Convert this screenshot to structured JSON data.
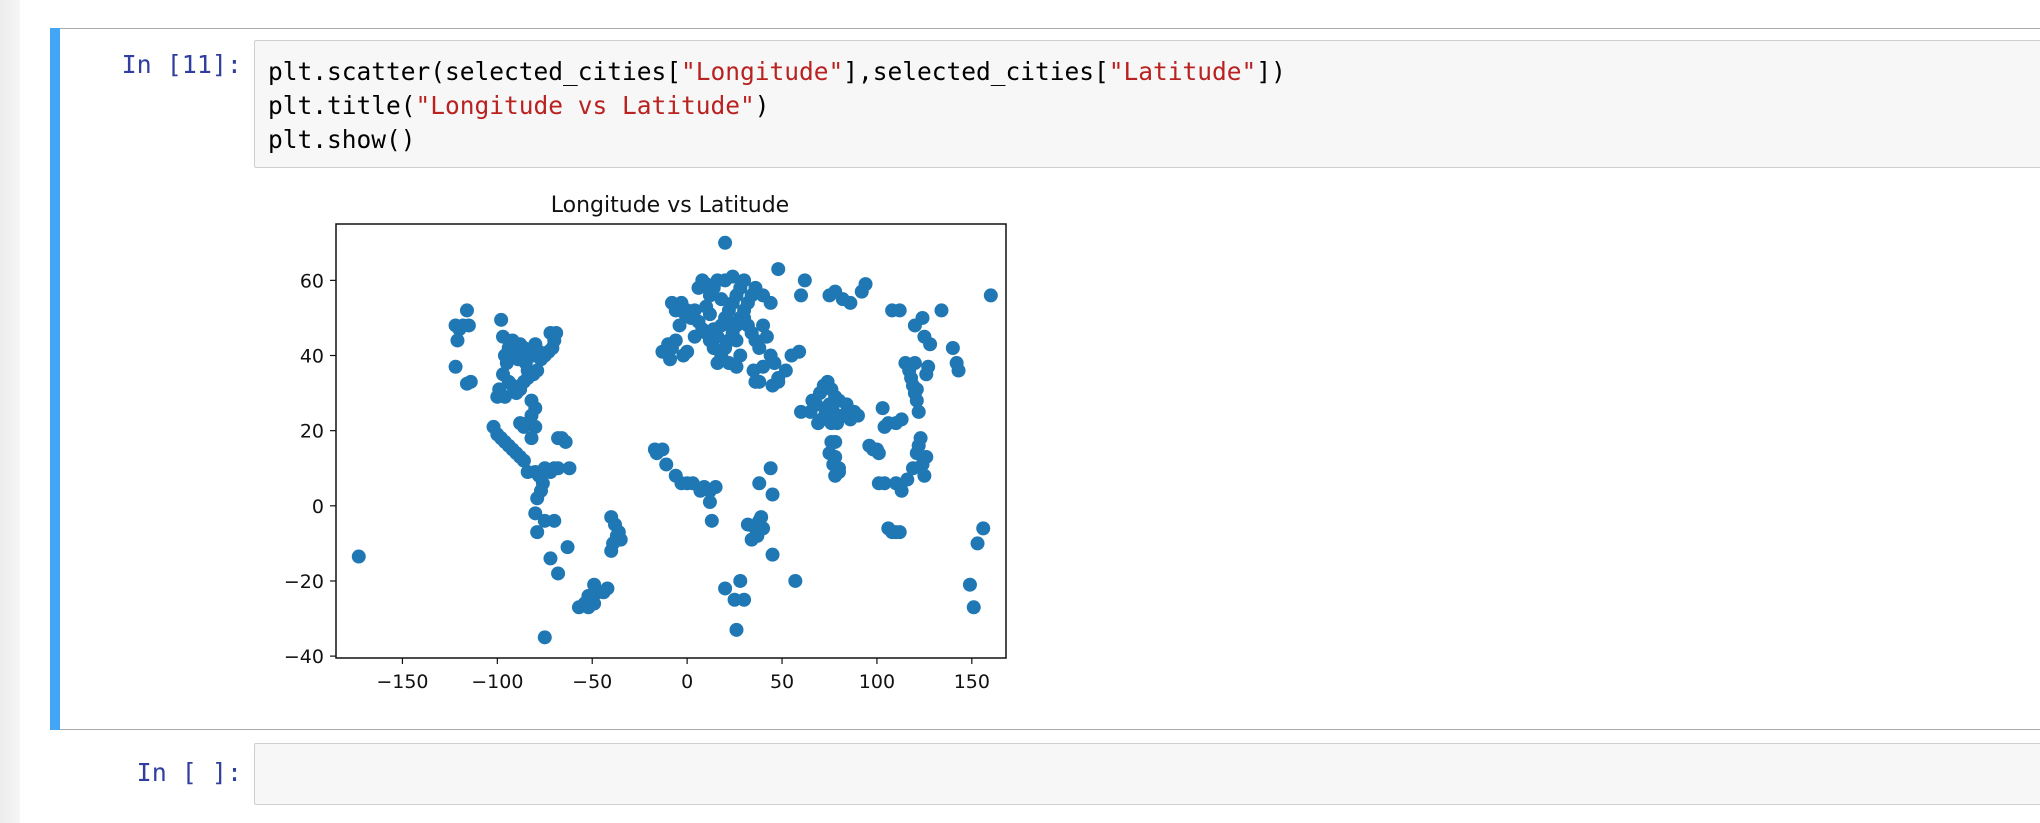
{
  "cells": [
    {
      "prompt": "In [11]:",
      "code": {
        "line1": {
          "a": "plt.scatter(selected_cities[",
          "s1": "\"Longitude\"",
          "b": "],selected_cities[",
          "s2": "\"Latitude\"",
          "c": "])"
        },
        "line2": {
          "a": "plt.title(",
          "s1": "\"Longitude vs Latitude\"",
          "b": ")"
        },
        "line3": {
          "a": "plt.show()"
        }
      }
    },
    {
      "prompt": "In [ ]:",
      "code": ""
    }
  ],
  "colors": {
    "marker": "#1f77b4",
    "selection_bar": "#42a5f5",
    "prompt": "#303f9f",
    "string": "#ba2121"
  },
  "chart_data": {
    "type": "scatter",
    "title": "Longitude vs Latitude",
    "xlabel": "",
    "ylabel": "",
    "xlim": [
      -185,
      168
    ],
    "ylim": [
      -40.5,
      75
    ],
    "xticks": [
      -150,
      -100,
      -50,
      0,
      50,
      100,
      150
    ],
    "yticks": [
      -40,
      -20,
      0,
      20,
      40,
      60
    ],
    "xtick_labels": [
      "−150",
      "−100",
      "−50",
      "0",
      "50",
      "100",
      "150"
    ],
    "ytick_labels": [
      "−40",
      "−20",
      "0",
      "20",
      "40",
      "60"
    ],
    "grid": false,
    "points": [
      [
        -173,
        -13.5
      ],
      [
        -122,
        48
      ],
      [
        -120,
        47
      ],
      [
        -118,
        48
      ],
      [
        -115,
        48
      ],
      [
        -116,
        52
      ],
      [
        -121,
        44
      ],
      [
        -122,
        37
      ],
      [
        -114,
        33
      ],
      [
        -116,
        32.5
      ],
      [
        -98,
        49.5
      ],
      [
        -97,
        45
      ],
      [
        -96,
        40
      ],
      [
        -95,
        38
      ],
      [
        -94,
        42
      ],
      [
        -92,
        44
      ],
      [
        -90,
        41
      ],
      [
        -89,
        39
      ],
      [
        -88,
        43
      ],
      [
        -87,
        40
      ],
      [
        -86,
        42
      ],
      [
        -85,
        38
      ],
      [
        -84,
        36
      ],
      [
        -83,
        41
      ],
      [
        -81,
        40
      ],
      [
        -80,
        43
      ],
      [
        -78,
        41
      ],
      [
        -75,
        40
      ],
      [
        -73,
        41
      ],
      [
        -71,
        42
      ],
      [
        -70,
        44
      ],
      [
        -69,
        46
      ],
      [
        -72,
        46
      ],
      [
        -77,
        39
      ],
      [
        -79,
        36
      ],
      [
        -81,
        35
      ],
      [
        -84,
        34
      ],
      [
        -86,
        33
      ],
      [
        -88,
        31
      ],
      [
        -90,
        30
      ],
      [
        -92,
        32
      ],
      [
        -94,
        33
      ],
      [
        -97,
        35
      ],
      [
        -99,
        31
      ],
      [
        -100,
        29
      ],
      [
        -96,
        29
      ],
      [
        -82,
        28
      ],
      [
        -80,
        26
      ],
      [
        -82,
        24
      ],
      [
        -84,
        22
      ],
      [
        -86,
        21
      ],
      [
        -88,
        22
      ],
      [
        -80,
        21
      ],
      [
        -82,
        18
      ],
      [
        -102,
        21
      ],
      [
        -100,
        19
      ],
      [
        -98,
        18
      ],
      [
        -96,
        17
      ],
      [
        -94,
        16
      ],
      [
        -92,
        15
      ],
      [
        -90,
        14
      ],
      [
        -88,
        13
      ],
      [
        -86,
        12
      ],
      [
        -84,
        9
      ],
      [
        -80,
        9
      ],
      [
        -78,
        8
      ],
      [
        -76,
        6
      ],
      [
        -75,
        10
      ],
      [
        -72,
        9
      ],
      [
        -70,
        10
      ],
      [
        -68,
        18
      ],
      [
        -66,
        18
      ],
      [
        -64,
        17
      ],
      [
        -62,
        10
      ],
      [
        -68,
        10
      ],
      [
        -77,
        4
      ],
      [
        -79,
        2
      ],
      [
        -80,
        -2
      ],
      [
        -75,
        -4
      ],
      [
        -70,
        -4
      ],
      [
        -79,
        -7
      ],
      [
        -72,
        -14
      ],
      [
        -68,
        -18
      ],
      [
        -63,
        -11
      ],
      [
        -75,
        -35
      ],
      [
        -57,
        -27
      ],
      [
        -54,
        -26
      ],
      [
        -52,
        -24
      ],
      [
        -49,
        -26
      ],
      [
        -47,
        -23
      ],
      [
        -49,
        -21
      ],
      [
        -44,
        -23
      ],
      [
        -42,
        -22
      ],
      [
        -52,
        -27
      ],
      [
        -40,
        -3
      ],
      [
        -38,
        -5
      ],
      [
        -36,
        -7
      ],
      [
        -35,
        -9
      ],
      [
        -39,
        -10
      ],
      [
        -40,
        -12
      ],
      [
        -37,
        -8
      ],
      [
        -17,
        15
      ],
      [
        -16,
        14
      ],
      [
        -13,
        15
      ],
      [
        -11,
        11
      ],
      [
        -6,
        8
      ],
      [
        -3,
        6
      ],
      [
        0,
        6
      ],
      [
        3,
        6
      ],
      [
        7,
        4
      ],
      [
        9,
        5
      ],
      [
        12,
        4
      ],
      [
        15,
        5
      ],
      [
        12,
        1
      ],
      [
        13,
        -4
      ],
      [
        -13,
        41
      ],
      [
        -10,
        43
      ],
      [
        -9,
        39
      ],
      [
        -8,
        42
      ],
      [
        -6,
        44
      ],
      [
        -4,
        48
      ],
      [
        -2,
        40
      ],
      [
        0,
        41
      ],
      [
        -8,
        54
      ],
      [
        -6,
        52
      ],
      [
        -3,
        54
      ],
      [
        -1,
        51
      ],
      [
        2,
        50
      ],
      [
        4,
        45
      ],
      [
        6,
        49
      ],
      [
        8,
        47
      ],
      [
        10,
        46
      ],
      [
        12,
        44
      ],
      [
        14,
        42
      ],
      [
        16,
        45
      ],
      [
        18,
        48
      ],
      [
        20,
        50
      ],
      [
        22,
        52
      ],
      [
        24,
        54
      ],
      [
        26,
        56
      ],
      [
        28,
        58
      ],
      [
        30,
        50
      ],
      [
        32,
        48
      ],
      [
        34,
        46
      ],
      [
        36,
        44
      ],
      [
        38,
        42
      ],
      [
        16,
        38
      ],
      [
        18,
        40
      ],
      [
        20,
        42
      ],
      [
        22,
        44
      ],
      [
        24,
        46
      ],
      [
        26,
        48
      ],
      [
        28,
        50
      ],
      [
        30,
        52
      ],
      [
        32,
        54
      ],
      [
        34,
        56
      ],
      [
        12,
        56
      ],
      [
        14,
        58
      ],
      [
        6,
        58
      ],
      [
        8,
        60
      ],
      [
        10,
        59
      ],
      [
        16,
        60
      ],
      [
        20,
        60
      ],
      [
        24,
        61
      ],
      [
        30,
        60
      ],
      [
        36,
        58
      ],
      [
        40,
        56
      ],
      [
        44,
        54
      ],
      [
        40,
        48
      ],
      [
        42,
        45
      ],
      [
        44,
        40
      ],
      [
        46,
        38
      ],
      [
        40,
        37
      ],
      [
        35,
        36
      ],
      [
        38,
        33
      ],
      [
        28,
        40
      ],
      [
        22,
        38
      ],
      [
        26,
        37
      ],
      [
        12,
        51
      ],
      [
        18,
        55
      ],
      [
        22,
        49
      ],
      [
        26,
        44
      ],
      [
        14,
        47
      ],
      [
        10,
        53
      ],
      [
        4,
        52
      ],
      [
        0,
        52
      ],
      [
        20,
        70
      ],
      [
        48,
        63
      ],
      [
        62,
        60
      ],
      [
        60,
        56
      ],
      [
        75,
        56
      ],
      [
        82,
        55
      ],
      [
        86,
        54
      ],
      [
        78,
        57
      ],
      [
        92,
        57
      ],
      [
        94,
        59
      ],
      [
        108,
        52
      ],
      [
        112,
        52
      ],
      [
        124,
        50
      ],
      [
        134,
        52
      ],
      [
        120,
        48
      ],
      [
        140,
        42
      ],
      [
        142,
        38
      ],
      [
        143,
        36
      ],
      [
        128,
        43
      ],
      [
        125,
        45
      ],
      [
        55,
        40
      ],
      [
        59,
        41
      ],
      [
        52,
        36
      ],
      [
        48,
        34
      ],
      [
        45,
        32
      ],
      [
        48,
        33
      ],
      [
        36,
        33
      ],
      [
        60,
        25
      ],
      [
        65,
        25
      ],
      [
        66,
        28
      ],
      [
        68,
        27
      ],
      [
        70,
        30
      ],
      [
        72,
        32
      ],
      [
        74,
        33
      ],
      [
        76,
        31
      ],
      [
        78,
        29
      ],
      [
        80,
        28
      ],
      [
        75,
        27
      ],
      [
        73,
        25
      ],
      [
        71,
        23
      ],
      [
        69,
        22
      ],
      [
        76,
        22
      ],
      [
        77,
        25
      ],
      [
        79,
        22
      ],
      [
        82,
        24
      ],
      [
        84,
        27
      ],
      [
        86,
        23
      ],
      [
        88,
        25
      ],
      [
        90,
        24
      ],
      [
        76,
        17
      ],
      [
        78,
        17
      ],
      [
        75,
        14
      ],
      [
        78,
        13
      ],
      [
        77,
        11
      ],
      [
        80,
        9
      ],
      [
        78,
        8
      ],
      [
        80,
        10
      ],
      [
        103,
        26
      ],
      [
        104,
        21
      ],
      [
        106,
        22
      ],
      [
        110,
        22
      ],
      [
        113,
        23
      ],
      [
        115,
        38
      ],
      [
        117,
        36
      ],
      [
        118,
        34
      ],
      [
        119,
        32
      ],
      [
        120,
        30
      ],
      [
        121,
        28
      ],
      [
        122,
        25
      ],
      [
        120,
        38
      ],
      [
        121,
        31
      ],
      [
        126,
        35
      ],
      [
        127,
        37
      ],
      [
        96,
        16
      ],
      [
        100,
        15
      ],
      [
        101,
        14
      ],
      [
        98,
        15
      ],
      [
        101,
        6
      ],
      [
        104,
        6
      ],
      [
        110,
        6
      ],
      [
        113,
        4
      ],
      [
        116,
        7
      ],
      [
        119,
        10
      ],
      [
        121,
        14
      ],
      [
        122,
        16
      ],
      [
        123,
        18
      ],
      [
        124,
        11
      ],
      [
        125,
        8
      ],
      [
        126,
        13
      ],
      [
        106,
        -6
      ],
      [
        108,
        -7
      ],
      [
        110,
        -7
      ],
      [
        112,
        -7
      ],
      [
        20,
        -22
      ],
      [
        25,
        -25
      ],
      [
        30,
        -25
      ],
      [
        28,
        -20
      ],
      [
        26,
        -33
      ],
      [
        32,
        -5
      ],
      [
        34,
        -9
      ],
      [
        36,
        -6
      ],
      [
        38,
        -4
      ],
      [
        39,
        -3
      ],
      [
        40,
        -6
      ],
      [
        37,
        -8
      ],
      [
        38,
        6
      ],
      [
        44,
        10
      ],
      [
        45,
        3
      ],
      [
        45,
        -13
      ],
      [
        57,
        -20
      ],
      [
        149,
        -21
      ],
      [
        151,
        -27
      ],
      [
        153,
        -10
      ],
      [
        156,
        -6
      ],
      [
        160,
        56
      ]
    ]
  }
}
